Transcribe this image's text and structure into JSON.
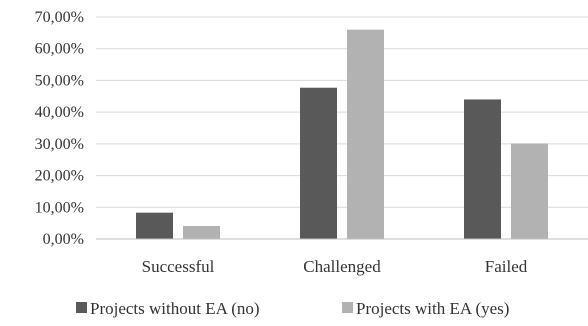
{
  "chart_data": {
    "type": "bar",
    "title": "",
    "xlabel": "",
    "ylabel": "",
    "categories": [
      "Successful",
      "Challenged",
      "Failed"
    ],
    "ylim": [
      0,
      70
    ],
    "ytick_step": 10,
    "ytick_labels": [
      "0,00%",
      "10,00%",
      "20,00%",
      "30,00%",
      "40,00%",
      "50,00%",
      "60,00%",
      "70,00%"
    ],
    "grid": true,
    "legend_position": "bottom",
    "series": [
      {
        "name": "Projects without EA (no)",
        "color": "#595959",
        "values": [
          8.3,
          47.7,
          44.0
        ]
      },
      {
        "name": "Projects with EA (yes)",
        "color": "#b2b2b2",
        "values": [
          4.1,
          66.0,
          30.1
        ]
      }
    ]
  }
}
